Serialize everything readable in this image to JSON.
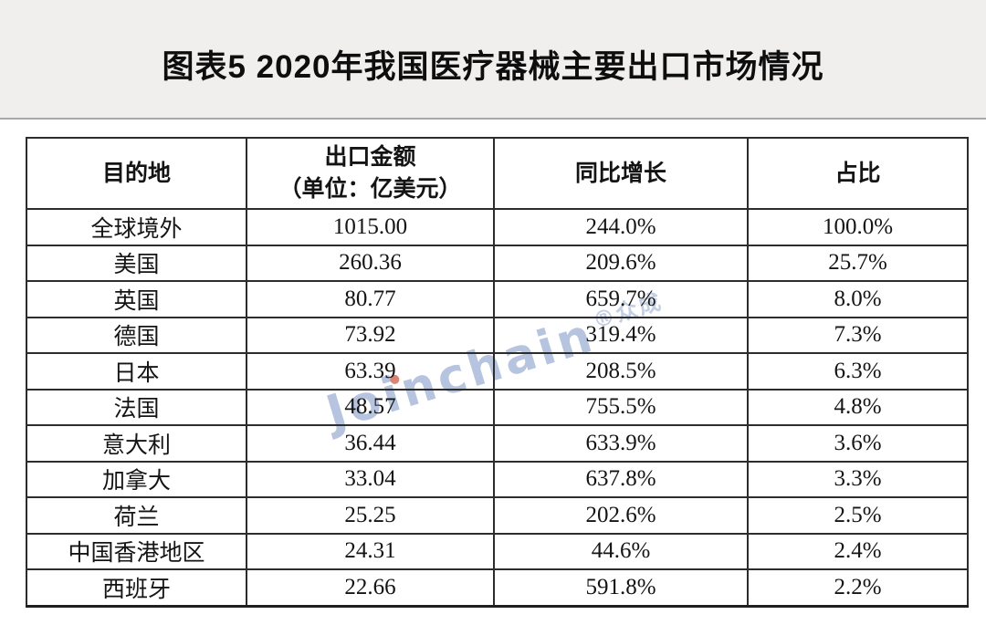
{
  "title": "图表5 2020年我国医疗器械主要出口市场情况",
  "watermark": {
    "brand": "Joinchain",
    "suffix": "®众成"
  },
  "colors": {
    "title_band_bg": "#f0efee",
    "table_border": "#2c2c2c",
    "watermark_blue": "#7a94c4",
    "watermark_dot_red": "#c6422a"
  },
  "table": {
    "header_lines": [
      [
        "目的地"
      ],
      [
        "出口金额",
        "（单位：亿美元）"
      ],
      [
        "同比增长"
      ],
      [
        "占比"
      ]
    ]
  },
  "chart_data": {
    "type": "table",
    "title": "图表5 2020年我国医疗器械主要出口市场情况",
    "columns": [
      "目的地",
      "出口金额（单位：亿美元）",
      "同比增长",
      "占比"
    ],
    "rows": [
      [
        "全球境外",
        "1015.00",
        "244.0%",
        "100.0%"
      ],
      [
        "美国",
        "260.36",
        "209.6%",
        "25.7%"
      ],
      [
        "英国",
        "80.77",
        "659.7%",
        "8.0%"
      ],
      [
        "德国",
        "73.92",
        "319.4%",
        "7.3%"
      ],
      [
        "日本",
        "63.39",
        "208.5%",
        "6.3%"
      ],
      [
        "法国",
        "48.57",
        "755.5%",
        "4.8%"
      ],
      [
        "意大利",
        "36.44",
        "633.9%",
        "3.6%"
      ],
      [
        "加拿大",
        "33.04",
        "637.8%",
        "3.3%"
      ],
      [
        "荷兰",
        "25.25",
        "202.6%",
        "2.5%"
      ],
      [
        "中国香港地区",
        "24.31",
        "44.6%",
        "2.4%"
      ],
      [
        "西班牙",
        "22.66",
        "591.8%",
        "2.2%"
      ]
    ]
  }
}
